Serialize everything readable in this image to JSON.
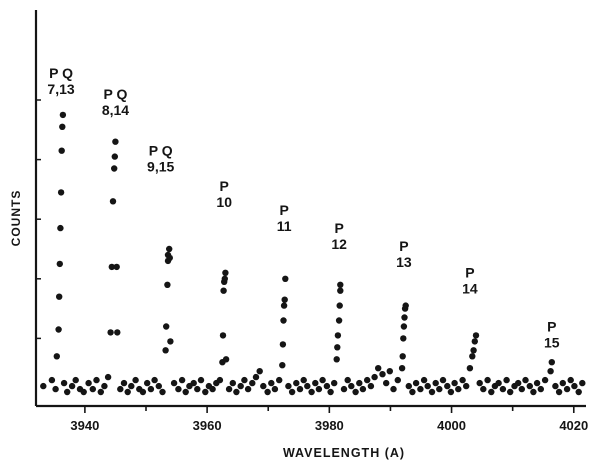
{
  "chart_data": {
    "type": "scatter",
    "title": "",
    "xlabel": "WAVELENGTH (A)",
    "ylabel": "COUNTS",
    "xlim": [
      3932,
      4022
    ],
    "ylim": [
      0,
      100
    ],
    "x_ticks": [
      3940,
      3960,
      3980,
      4000,
      4020
    ],
    "grid": false,
    "legend": "none",
    "colors": {
      "ink": "#151515",
      "background": "#ffffff"
    },
    "annotations": [
      {
        "line1": "P Q",
        "line2": "7,13",
        "x": 3936.1,
        "y": 100
      },
      {
        "line1": "P Q",
        "line2": "8,14",
        "x": 3945.0,
        "y": 93
      },
      {
        "line1": "P Q",
        "line2": "9,15",
        "x": 3952.4,
        "y": 74
      },
      {
        "line1": "P",
        "line2": "10",
        "x": 3962.8,
        "y": 62
      },
      {
        "line1": "P",
        "line2": "11",
        "x": 3972.6,
        "y": 54
      },
      {
        "line1": "P",
        "line2": "12",
        "x": 3981.6,
        "y": 48
      },
      {
        "line1": "P",
        "line2": "13",
        "x": 3992.2,
        "y": 42
      },
      {
        "line1": "P",
        "line2": "14",
        "x": 4003.0,
        "y": 33
      },
      {
        "line1": "P",
        "line2": "15",
        "x": 4016.4,
        "y": 15
      }
    ],
    "lines": [
      {
        "center": 3936.1,
        "points": [
          [
            3935.4,
            14
          ],
          [
            3935.7,
            23
          ],
          [
            3935.8,
            34
          ],
          [
            3935.9,
            45
          ],
          [
            3936.0,
            57
          ],
          [
            3936.1,
            69
          ],
          [
            3936.2,
            83
          ],
          [
            3936.3,
            91
          ],
          [
            3936.4,
            95
          ]
        ]
      },
      {
        "center": 3945.0,
        "points": [
          [
            3944.2,
            22
          ],
          [
            3944.4,
            44
          ],
          [
            3944.6,
            66
          ],
          [
            3944.8,
            77
          ],
          [
            3944.9,
            81
          ],
          [
            3945.0,
            86
          ],
          [
            3945.2,
            44
          ],
          [
            3945.3,
            22
          ]
        ]
      },
      {
        "center": 3953.6,
        "points": [
          [
            3953.2,
            16
          ],
          [
            3953.3,
            24
          ],
          [
            3953.5,
            38
          ],
          [
            3953.6,
            46
          ],
          [
            3953.6,
            48
          ],
          [
            3953.8,
            50
          ],
          [
            3953.9,
            47
          ],
          [
            3954.0,
            19
          ]
        ]
      },
      {
        "center": 3962.8,
        "points": [
          [
            3962.5,
            12
          ],
          [
            3962.6,
            21
          ],
          [
            3962.7,
            36
          ],
          [
            3962.8,
            39
          ],
          [
            3962.9,
            40
          ],
          [
            3963.0,
            42
          ],
          [
            3963.1,
            13
          ]
        ]
      },
      {
        "center": 3972.6,
        "points": [
          [
            3972.3,
            11
          ],
          [
            3972.4,
            18
          ],
          [
            3972.5,
            26
          ],
          [
            3972.6,
            31
          ],
          [
            3972.7,
            33
          ],
          [
            3972.8,
            40
          ]
        ]
      },
      {
        "center": 3981.6,
        "points": [
          [
            3981.2,
            13
          ],
          [
            3981.3,
            17
          ],
          [
            3981.4,
            21
          ],
          [
            3981.6,
            26
          ],
          [
            3981.7,
            31
          ],
          [
            3981.8,
            36
          ],
          [
            3981.8,
            38
          ]
        ]
      },
      {
        "center": 3992.2,
        "points": [
          [
            3991.9,
            10
          ],
          [
            3992.0,
            14
          ],
          [
            3992.1,
            20
          ],
          [
            3992.2,
            24
          ],
          [
            3992.3,
            27
          ],
          [
            3992.4,
            30
          ],
          [
            3992.5,
            31
          ]
        ]
      },
      {
        "center": 4003.8,
        "points": [
          [
            4003.0,
            10
          ],
          [
            4003.4,
            14
          ],
          [
            4003.6,
            16
          ],
          [
            4003.8,
            19
          ],
          [
            4004.0,
            21
          ]
        ]
      },
      {
        "center": 4016.4,
        "points": [
          [
            4016.2,
            9
          ],
          [
            4016.4,
            12
          ]
        ]
      }
    ],
    "baseline_points": [
      [
        3933.2,
        4
      ],
      [
        3934.6,
        6
      ],
      [
        3935.2,
        3
      ],
      [
        3936.6,
        5
      ],
      [
        3937.1,
        2
      ],
      [
        3937.9,
        4
      ],
      [
        3938.5,
        6
      ],
      [
        3939.2,
        3
      ],
      [
        3939.8,
        2
      ],
      [
        3940.6,
        5
      ],
      [
        3941.3,
        3
      ],
      [
        3941.9,
        6
      ],
      [
        3942.6,
        2
      ],
      [
        3943.2,
        4
      ],
      [
        3943.8,
        7
      ],
      [
        3945.8,
        3
      ],
      [
        3946.4,
        5
      ],
      [
        3947.0,
        2
      ],
      [
        3947.6,
        4
      ],
      [
        3948.3,
        6
      ],
      [
        3948.9,
        3
      ],
      [
        3949.5,
        2
      ],
      [
        3950.2,
        5
      ],
      [
        3950.8,
        3
      ],
      [
        3951.4,
        6
      ],
      [
        3952.1,
        4
      ],
      [
        3952.7,
        2
      ],
      [
        3954.6,
        5
      ],
      [
        3955.3,
        3
      ],
      [
        3955.9,
        6
      ],
      [
        3956.5,
        2
      ],
      [
        3957.1,
        4
      ],
      [
        3957.8,
        5
      ],
      [
        3958.4,
        3
      ],
      [
        3959.0,
        6
      ],
      [
        3959.7,
        2
      ],
      [
        3960.3,
        4
      ],
      [
        3960.9,
        3
      ],
      [
        3961.5,
        5
      ],
      [
        3962.1,
        6
      ],
      [
        3963.6,
        3
      ],
      [
        3964.2,
        5
      ],
      [
        3964.8,
        2
      ],
      [
        3965.5,
        4
      ],
      [
        3966.1,
        6
      ],
      [
        3966.7,
        3
      ],
      [
        3967.4,
        5
      ],
      [
        3968.0,
        7
      ],
      [
        3968.6,
        9
      ],
      [
        3969.2,
        4
      ],
      [
        3969.9,
        2
      ],
      [
        3970.5,
        5
      ],
      [
        3971.1,
        3
      ],
      [
        3971.8,
        6
      ],
      [
        3973.3,
        4
      ],
      [
        3973.9,
        2
      ],
      [
        3974.6,
        5
      ],
      [
        3975.2,
        3
      ],
      [
        3975.8,
        6
      ],
      [
        3976.4,
        4
      ],
      [
        3977.1,
        2
      ],
      [
        3977.7,
        5
      ],
      [
        3978.3,
        3
      ],
      [
        3978.9,
        6
      ],
      [
        3979.6,
        4
      ],
      [
        3980.2,
        2
      ],
      [
        3980.8,
        5
      ],
      [
        3982.4,
        3
      ],
      [
        3983.0,
        6
      ],
      [
        3983.6,
        4
      ],
      [
        3984.3,
        2
      ],
      [
        3984.9,
        5
      ],
      [
        3985.5,
        3
      ],
      [
        3986.2,
        6
      ],
      [
        3986.8,
        4
      ],
      [
        3987.4,
        7
      ],
      [
        3988.0,
        10
      ],
      [
        3988.7,
        8
      ],
      [
        3989.3,
        5
      ],
      [
        3989.9,
        9
      ],
      [
        3990.5,
        3
      ],
      [
        3991.2,
        6
      ],
      [
        3993.0,
        4
      ],
      [
        3993.6,
        2
      ],
      [
        3994.2,
        5
      ],
      [
        3994.9,
        3
      ],
      [
        3995.5,
        6
      ],
      [
        3996.1,
        4
      ],
      [
        3996.8,
        2
      ],
      [
        3997.4,
        5
      ],
      [
        3998.0,
        3
      ],
      [
        3998.6,
        6
      ],
      [
        3999.3,
        4
      ],
      [
        3999.9,
        2
      ],
      [
        4000.5,
        5
      ],
      [
        4001.1,
        3
      ],
      [
        4001.8,
        6
      ],
      [
        4002.4,
        4
      ],
      [
        4004.6,
        5
      ],
      [
        4005.2,
        3
      ],
      [
        4005.9,
        6
      ],
      [
        4006.5,
        2
      ],
      [
        4007.1,
        4
      ],
      [
        4007.7,
        5
      ],
      [
        4008.4,
        3
      ],
      [
        4009.0,
        6
      ],
      [
        4009.6,
        2
      ],
      [
        4010.3,
        4
      ],
      [
        4010.9,
        5
      ],
      [
        4011.5,
        3
      ],
      [
        4012.1,
        6
      ],
      [
        4012.8,
        4
      ],
      [
        4013.4,
        2
      ],
      [
        4014.0,
        5
      ],
      [
        4014.6,
        3
      ],
      [
        4015.3,
        6
      ],
      [
        4017.0,
        4
      ],
      [
        4017.6,
        2
      ],
      [
        4018.2,
        5
      ],
      [
        4018.9,
        3
      ],
      [
        4019.5,
        6
      ],
      [
        4020.1,
        4
      ],
      [
        4020.8,
        2
      ],
      [
        4021.4,
        5
      ]
    ]
  }
}
